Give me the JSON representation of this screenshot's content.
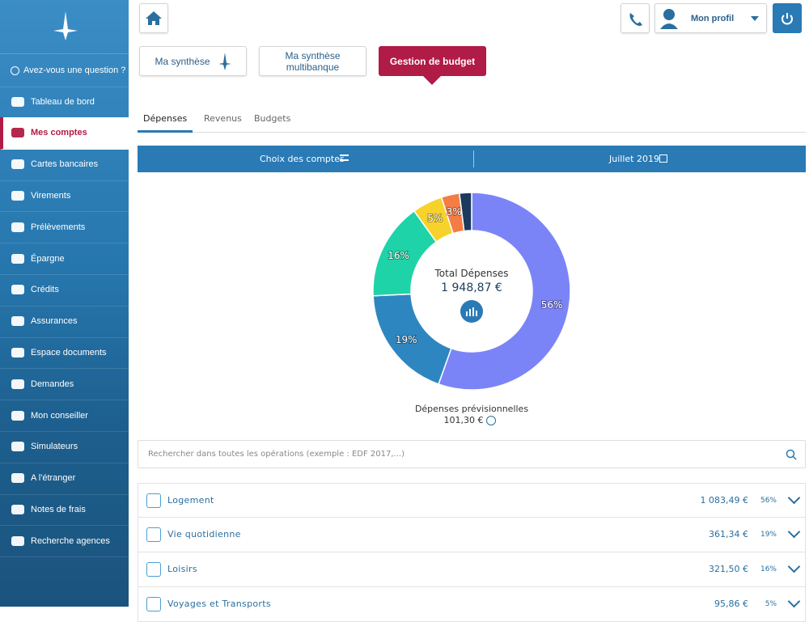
{
  "sidebar": {
    "question": "Avez-vous une question ?",
    "items": [
      "Tableau de bord",
      "Mes comptes",
      "Cartes bancaires",
      "Virements",
      "Prélèvements",
      "Épargne",
      "Crédits",
      "Assurances",
      "Espace documents",
      "Demandes",
      "Mon conseiller",
      "Simulateurs",
      "A l'étranger",
      "Notes de frais",
      "Recherche agences"
    ]
  },
  "header": {
    "profile": "Mon profil"
  },
  "top_tabs": [
    "Ma synthèse",
    "Ma synthèse multibanque",
    "Gestion de budget"
  ],
  "sub_tabs": [
    "Dépenses",
    "Revenus",
    "Budgets"
  ],
  "filter": {
    "accounts": "Choix des comptes",
    "period": "Juillet 2019"
  },
  "chart_data": {
    "type": "pie",
    "center_title": "Total Dépenses",
    "center_value": "1 948,87 €",
    "values": [
      56,
      19,
      16,
      5,
      3,
      2
    ],
    "value_labels": [
      "56%",
      "19%",
      "16%",
      "5%",
      "3%",
      null
    ],
    "colors": [
      "#7b84f7",
      "#2e86c1",
      "#1fd3a8",
      "#f7d22b",
      "#f47c45",
      "#1b3a5e"
    ]
  },
  "forecast": {
    "label": "Dépenses prévisionnelles",
    "amount": "101,30 €"
  },
  "search_placeholder": "Rechercher dans toutes les opérations (exemple : EDF 2017,...)",
  "rows": [
    {
      "name": "Logement",
      "amount": "1 083,49 €",
      "percent": "56%"
    },
    {
      "name": "Vie quotidienne",
      "amount": "361,34 €",
      "percent": "19%"
    },
    {
      "name": "Loisirs",
      "amount": "321,50 €",
      "percent": "16%"
    },
    {
      "name": "Voyages et Transports",
      "amount": "95,86 €",
      "percent": "5%"
    }
  ]
}
